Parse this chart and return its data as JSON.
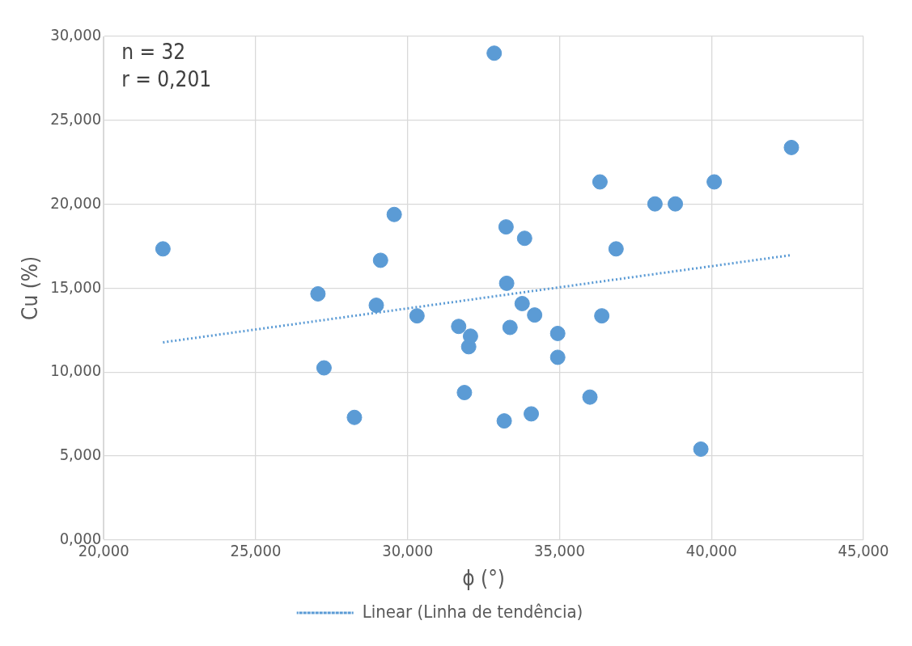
{
  "chart_data": {
    "type": "scatter",
    "xlabel": "ϕ (°)",
    "ylabel": "Cu (%)",
    "annotations": [
      "n = 32",
      "r = 0,201"
    ],
    "xlim": [
      20,
      45
    ],
    "ylim": [
      0,
      30
    ],
    "xticks": [
      {
        "value": 20,
        "label": "20,000"
      },
      {
        "value": 25,
        "label": "25,000"
      },
      {
        "value": 30,
        "label": "30,000"
      },
      {
        "value": 35,
        "label": "35,000"
      },
      {
        "value": 40,
        "label": "40,000"
      },
      {
        "value": 45,
        "label": "45,000"
      }
    ],
    "yticks": [
      {
        "value": 0,
        "label": "0,000"
      },
      {
        "value": 5,
        "label": "5,000"
      },
      {
        "value": 10,
        "label": "10,000"
      },
      {
        "value": 15,
        "label": "15,000"
      },
      {
        "value": 20,
        "label": "20,000"
      },
      {
        "value": 25,
        "label": "25,000"
      },
      {
        "value": 30,
        "label": "30,000"
      }
    ],
    "grid": true,
    "legend": "bottom",
    "marker": "circle",
    "series": [
      {
        "color": "#5b9bd5",
        "x": [
          21.95,
          27.05,
          27.25,
          28.25,
          28.97,
          29.11,
          29.56,
          30.31,
          31.68,
          31.87,
          32.01,
          32.07,
          32.85,
          33.18,
          33.24,
          33.26,
          33.37,
          33.77,
          33.85,
          34.07,
          34.18,
          34.94,
          34.94,
          36.0,
          36.33,
          36.39,
          36.86,
          38.14,
          38.81,
          39.65,
          40.09,
          42.63
        ],
        "values": [
          17.34,
          14.66,
          10.25,
          7.3,
          13.98,
          16.66,
          19.39,
          13.35,
          12.72,
          8.78,
          11.51,
          12.14,
          29.0,
          7.09,
          18.65,
          15.29,
          12.66,
          14.08,
          17.97,
          7.51,
          13.4,
          12.3,
          10.88,
          8.51,
          21.33,
          13.35,
          17.34,
          20.02,
          20.02,
          5.41,
          21.33,
          23.38
        ]
      },
      {
        "type": "line",
        "name": "Linear (Linha de tendência)",
        "color": "#5b9bd5",
        "line_style": "dotted",
        "marker": "none",
        "x": [
          21.95,
          42.63
        ],
        "values": [
          11.77,
          16.97
        ]
      }
    ]
  }
}
